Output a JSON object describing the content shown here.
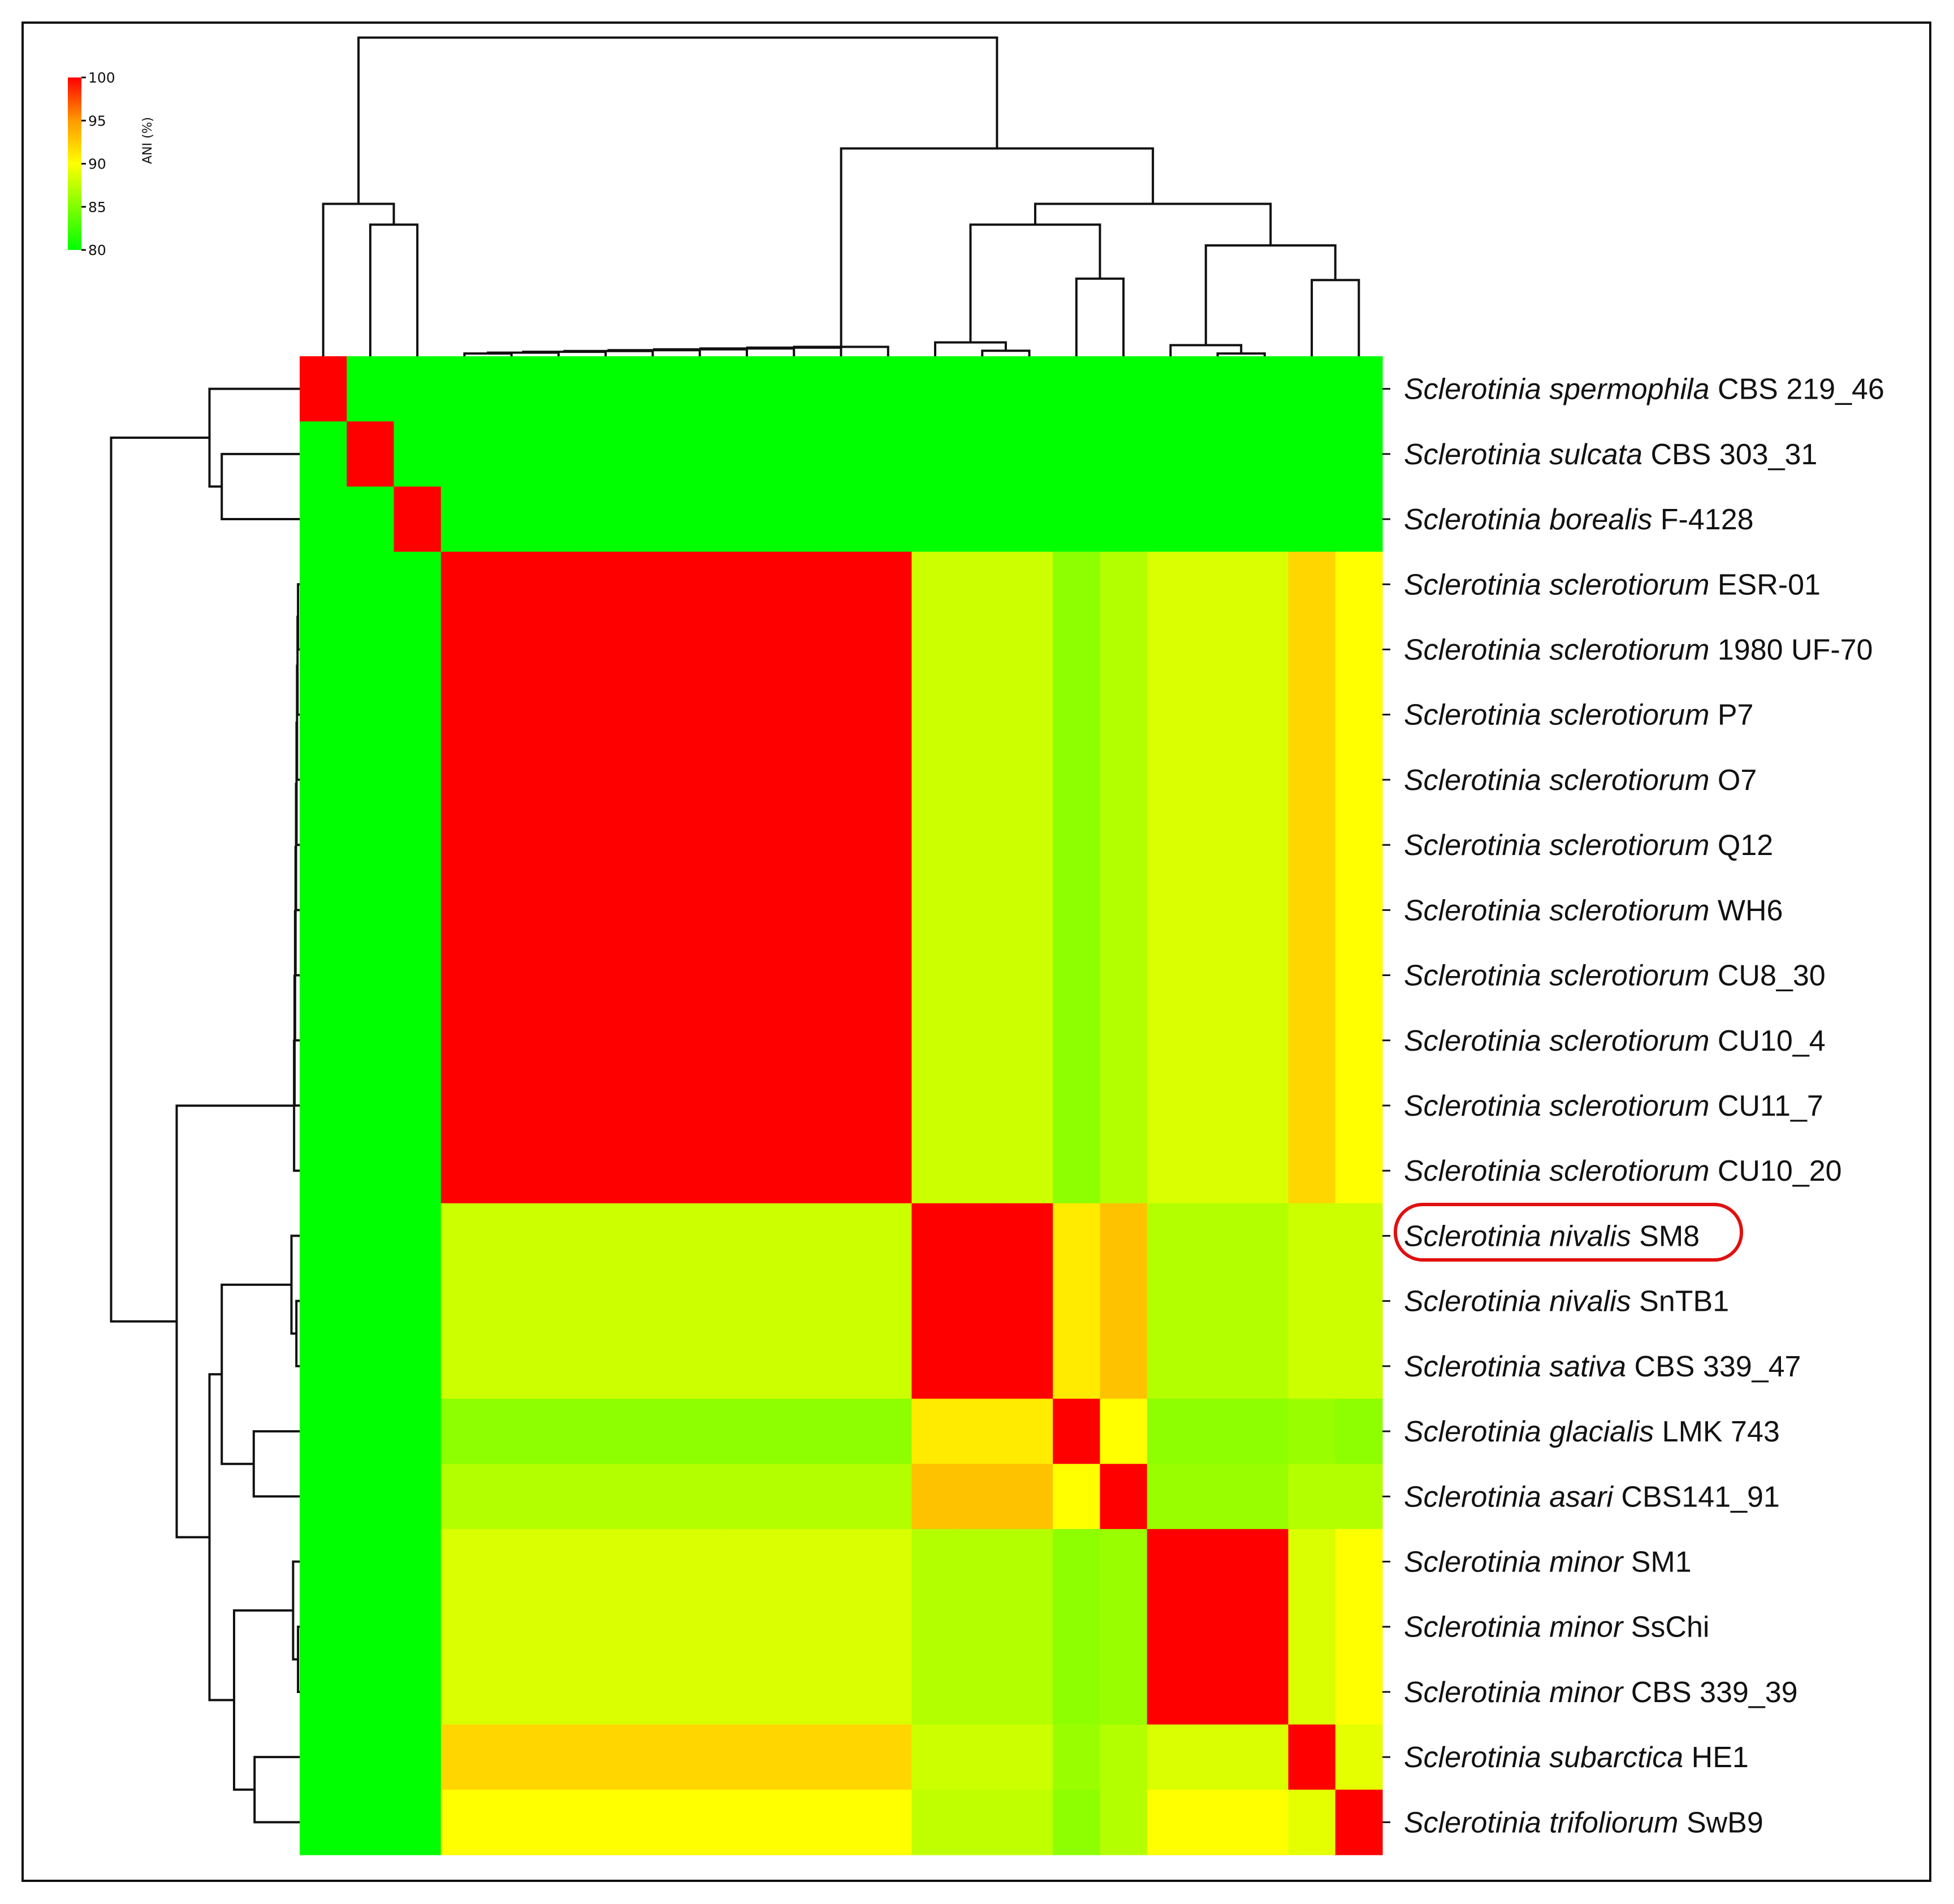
{
  "chart_data": {
    "type": "heatmap",
    "title": "",
    "value_label": "ANI (%)",
    "colorbar": {
      "title": "ANI (%)",
      "min": 80,
      "max": 100,
      "ticks": [
        100,
        95,
        90,
        85,
        80
      ],
      "tick_labels": [
        "100",
        "95",
        "90",
        "85",
        "80"
      ],
      "stops": [
        {
          "value": 80,
          "color": "#00ff00"
        },
        {
          "value": 85,
          "color": "#80ff00"
        },
        {
          "value": 90,
          "color": "#ffff00"
        },
        {
          "value": 95,
          "color": "#ff9900"
        },
        {
          "value": 100,
          "color": "#ff0000"
        }
      ]
    },
    "dendrogram_columns_order": [
      "Sclerotinia spermophila CBS 219_46",
      "Sclerotinia sulcata CBS 303_31",
      "Sclerotinia borealis F-4128",
      "Sclerotinia sclerotiorum ESR-01",
      "Sclerotinia sclerotiorum 1980 UF-70",
      "Sclerotinia sclerotiorum P7",
      "Sclerotinia sclerotiorum O7",
      "Sclerotinia sclerotiorum Q12",
      "Sclerotinia sclerotiorum WH6",
      "Sclerotinia sclerotiorum CU8_30",
      "Sclerotinia sclerotiorum CU10_4",
      "Sclerotinia sclerotiorum CU11_7",
      "Sclerotinia sclerotiorum CU10_20",
      "Sclerotinia nivalis SM8",
      "Sclerotinia nivalis SnTB1",
      "Sclerotinia sativa CBS 339_47",
      "Sclerotinia glacialis LMK 743",
      "Sclerotinia asari CBS141_91",
      "Sclerotinia minor SM1",
      "Sclerotinia minor SsChi",
      "Sclerotinia minor CBS 339_39",
      "Sclerotinia subarctica HE1",
      "Sclerotinia trifoliorum SwB9"
    ],
    "groups": [
      {
        "name": "spermophila",
        "size": 1
      },
      {
        "name": "sulcata",
        "size": 1
      },
      {
        "name": "borealis",
        "size": 1
      },
      {
        "name": "sclerotiorum",
        "size": 10
      },
      {
        "name": "nivalis_sativa",
        "size": 3
      },
      {
        "name": "glacialis",
        "size": 1
      },
      {
        "name": "asari",
        "size": 1
      },
      {
        "name": "minor",
        "size": 3
      },
      {
        "name": "subarctica",
        "size": 1
      },
      {
        "name": "trifoliorum",
        "size": 1
      }
    ],
    "group_ani_matrix": [
      [
        100,
        80,
        80,
        80,
        80,
        80,
        80,
        80,
        80,
        80
      ],
      [
        80,
        100,
        80,
        80,
        80,
        80,
        80,
        80,
        80,
        80
      ],
      [
        80,
        80,
        100,
        80,
        80,
        80,
        80,
        80,
        80,
        80
      ],
      [
        80,
        80,
        80,
        100,
        88,
        85.5,
        87,
        88.5,
        92,
        90
      ],
      [
        80,
        80,
        80,
        88,
        100,
        91,
        93,
        87,
        88,
        88
      ],
      [
        80,
        80,
        80,
        85.5,
        91,
        100,
        90,
        85.5,
        86,
        85.5
      ],
      [
        80,
        80,
        80,
        87,
        93,
        90,
        100,
        86,
        87,
        87
      ],
      [
        80,
        80,
        80,
        88.5,
        87,
        85.5,
        86,
        100,
        88.5,
        90
      ],
      [
        80,
        80,
        80,
        92,
        88,
        86,
        87,
        88.5,
        100,
        89
      ],
      [
        80,
        80,
        80,
        90,
        87.5,
        85.5,
        87,
        90,
        89,
        100
      ]
    ],
    "highlighted_label": "Sclerotinia nivalis SM8",
    "row_labels": [
      {
        "genus": "Sclerotinia",
        "species": "spermophila",
        "strain": "CBS 219_46"
      },
      {
        "genus": "Sclerotinia",
        "species": "sulcata",
        "strain": "CBS 303_31"
      },
      {
        "genus": "Sclerotinia",
        "species": "borealis",
        "strain": "F-4128"
      },
      {
        "genus": "Sclerotinia",
        "species": "sclerotiorum",
        "strain": "ESR-01"
      },
      {
        "genus": "Sclerotinia",
        "species": "sclerotiorum",
        "strain": "1980 UF-70"
      },
      {
        "genus": "Sclerotinia",
        "species": "sclerotiorum",
        "strain": "P7"
      },
      {
        "genus": "Sclerotinia",
        "species": "sclerotiorum",
        "strain": "O7"
      },
      {
        "genus": "Sclerotinia",
        "species": "sclerotiorum",
        "strain": "Q12"
      },
      {
        "genus": "Sclerotinia",
        "species": "sclerotiorum",
        "strain": "WH6"
      },
      {
        "genus": "Sclerotinia",
        "species": "sclerotiorum",
        "strain": "CU8_30"
      },
      {
        "genus": "Sclerotinia",
        "species": "sclerotiorum",
        "strain": "CU10_4"
      },
      {
        "genus": "Sclerotinia",
        "species": "sclerotiorum",
        "strain": "CU11_7"
      },
      {
        "genus": "Sclerotinia",
        "species": "sclerotiorum",
        "strain": "CU10_20"
      },
      {
        "genus": "Sclerotinia",
        "species": "nivalis",
        "strain": "SM8"
      },
      {
        "genus": "Sclerotinia",
        "species": "nivalis",
        "strain": "SnTB1"
      },
      {
        "genus": "Sclerotinia",
        "species": "sativa",
        "strain": "CBS 339_47"
      },
      {
        "genus": "Sclerotinia",
        "species": "glacialis",
        "strain": "LMK 743"
      },
      {
        "genus": "Sclerotinia",
        "species": "asari",
        "strain": "CBS141_91"
      },
      {
        "genus": "Sclerotinia",
        "species": "minor",
        "strain": "SM1"
      },
      {
        "genus": "Sclerotinia",
        "species": "minor",
        "strain": "SsChi"
      },
      {
        "genus": "Sclerotinia",
        "species": "minor",
        "strain": "CBS 339_39"
      },
      {
        "genus": "Sclerotinia",
        "species": "subarctica",
        "strain": "HE1"
      },
      {
        "genus": "Sclerotinia",
        "species": "trifoliorum",
        "strain": "SwB9"
      }
    ]
  }
}
